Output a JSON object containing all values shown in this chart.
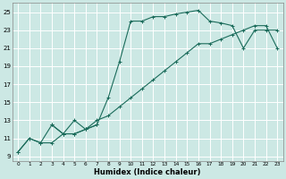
{
  "xlabel": "Humidex (Indice chaleur)",
  "bg_color": "#cce8e4",
  "grid_color": "#ffffff",
  "line_color": "#1a6b5a",
  "marker": "+",
  "xlim": [
    -0.5,
    23.5
  ],
  "ylim": [
    8.5,
    26.0
  ],
  "xticks": [
    0,
    1,
    2,
    3,
    4,
    5,
    6,
    7,
    8,
    9,
    10,
    11,
    12,
    13,
    14,
    15,
    16,
    17,
    18,
    19,
    20,
    21,
    22,
    23
  ],
  "yticks": [
    9,
    11,
    13,
    15,
    17,
    19,
    21,
    23,
    25
  ],
  "curve1_x": [
    0,
    1,
    2,
    3,
    4,
    5,
    6,
    7,
    8,
    9,
    10,
    11,
    12,
    13,
    14,
    15,
    16,
    17,
    18,
    19,
    20,
    21,
    22,
    23
  ],
  "curve1_y": [
    9.5,
    11.0,
    10.5,
    12.5,
    11.5,
    11.5,
    12.0,
    12.5,
    15.5,
    19.5,
    24.0,
    24.0,
    24.5,
    24.5,
    24.8,
    25.0,
    25.2,
    24.0,
    23.8,
    23.5,
    21.0,
    23.0,
    23.0,
    23.0
  ],
  "curve2_x": [
    0,
    1,
    2,
    3,
    4,
    5,
    6,
    7,
    8,
    9,
    10,
    11,
    12,
    13,
    14,
    15,
    16,
    17,
    18,
    19,
    20,
    21,
    22,
    23
  ],
  "curve2_y": [
    9.5,
    11.0,
    10.5,
    10.5,
    11.5,
    11.5,
    12.0,
    13.0,
    13.5,
    14.5,
    15.5,
    16.5,
    17.5,
    18.5,
    19.5,
    20.5,
    21.5,
    21.5,
    22.0,
    22.5,
    23.0,
    23.5,
    23.5,
    21.0
  ],
  "curve3_x": [
    3,
    4,
    5,
    6,
    7
  ],
  "curve3_y": [
    12.5,
    11.5,
    13.0,
    12.0,
    12.5
  ]
}
